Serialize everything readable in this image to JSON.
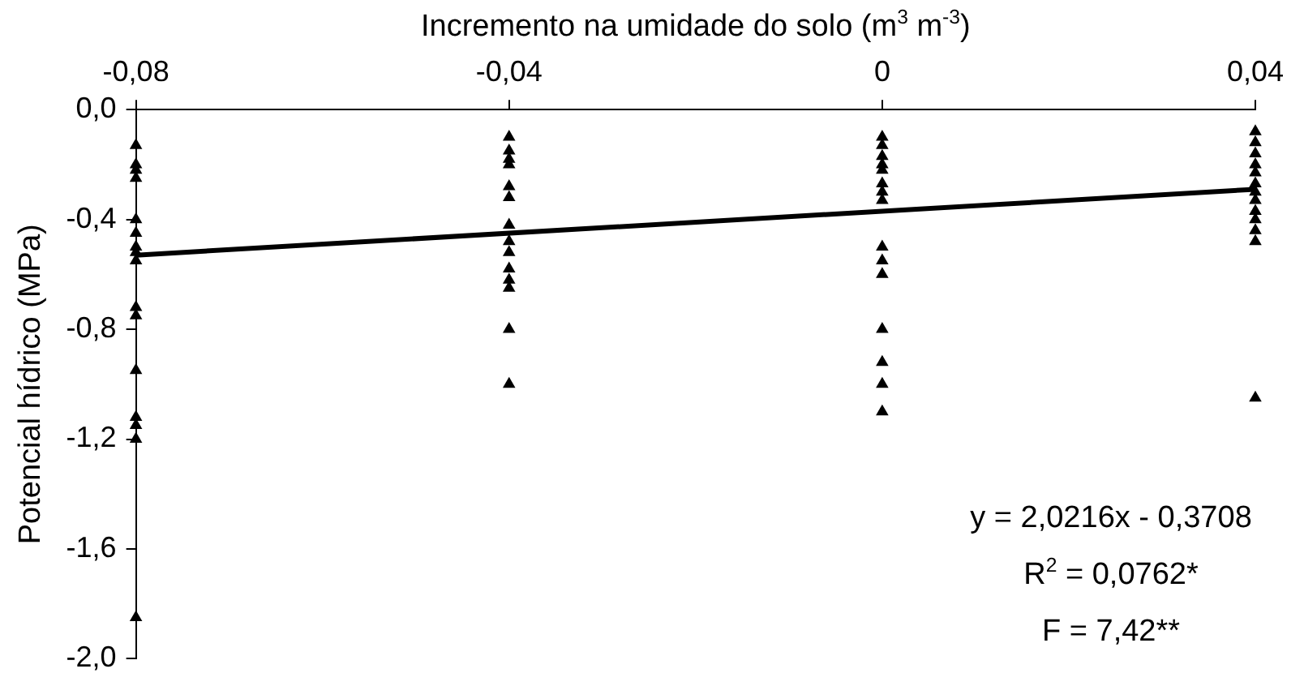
{
  "chart_data": {
    "type": "scatter",
    "xlabel": "Incremento na umidade do solo (m$^{3}$ m$^{-3}$)",
    "ylabel": "Potencial hídrico (MPa)",
    "xlim": [
      -0.08,
      0.04
    ],
    "xticks": [
      {
        "value": -0.08,
        "label": "-0,08"
      },
      {
        "value": -0.04,
        "label": "-0,04"
      },
      0,
      {
        "value": 0.04,
        "label": "0,04"
      }
    ],
    "ylim": [
      -2.0,
      0.0
    ],
    "yticks": [
      {
        "value": -2.0,
        "label": "-2,0"
      },
      {
        "value": -1.6,
        "label": "-1,6"
      },
      {
        "value": -1.2,
        "label": "-1,2"
      },
      {
        "value": -0.8,
        "label": "-0,8"
      },
      {
        "value": -0.4,
        "label": "-0,4"
      },
      {
        "value": 0.0,
        "label": "0,0"
      }
    ],
    "grid": false,
    "legend": false,
    "series": [
      {
        "color": "#000000",
        "marker": "triangle",
        "x": [
          -0.08,
          -0.08,
          -0.08,
          -0.08,
          -0.08,
          -0.08,
          -0.08,
          -0.08,
          -0.08,
          -0.08,
          -0.08,
          -0.08,
          -0.08,
          -0.08,
          -0.08,
          -0.08,
          -0.04,
          -0.04,
          -0.04,
          -0.04,
          -0.04,
          -0.04,
          -0.04,
          -0.04,
          -0.04,
          -0.04,
          -0.04,
          -0.04,
          -0.04,
          -0.04,
          0,
          0,
          0,
          0,
          0,
          0,
          0,
          0,
          0,
          0,
          0,
          0,
          0,
          0,
          0,
          0.04,
          0.04,
          0.04,
          0.04,
          0.04,
          0.04,
          0.04,
          0.04,
          0.04,
          0.04,
          0.04,
          0.04,
          0.04
        ],
        "values": [
          -0.13,
          -0.2,
          -0.22,
          -0.25,
          -0.4,
          -0.45,
          -0.5,
          -0.52,
          -0.55,
          -0.72,
          -0.75,
          -0.95,
          -1.12,
          -1.15,
          -1.2,
          -1.85,
          -0.1,
          -0.15,
          -0.18,
          -0.2,
          -0.28,
          -0.32,
          -0.42,
          -0.48,
          -0.52,
          -0.58,
          -0.62,
          -0.65,
          -0.8,
          -1.0,
          -0.1,
          -0.13,
          -0.17,
          -0.2,
          -0.22,
          -0.27,
          -0.3,
          -0.33,
          -0.5,
          -0.55,
          -0.6,
          -0.8,
          -0.92,
          -1.0,
          -1.1,
          -0.08,
          -0.12,
          -0.16,
          -0.2,
          -0.23,
          -0.27,
          -0.3,
          -0.33,
          -0.37,
          -0.4,
          -0.44,
          -0.48,
          -1.05
        ]
      },
      {
        "type": "line",
        "color": "#000000",
        "x": [
          -0.08,
          0.04
        ],
        "values": [
          -0.53,
          -0.29
        ]
      }
    ],
    "annotations": [
      "y = 2,0216x - 0,3708",
      "R$^{2}$ = 0,0762*",
      "F = 7,42**"
    ]
  }
}
